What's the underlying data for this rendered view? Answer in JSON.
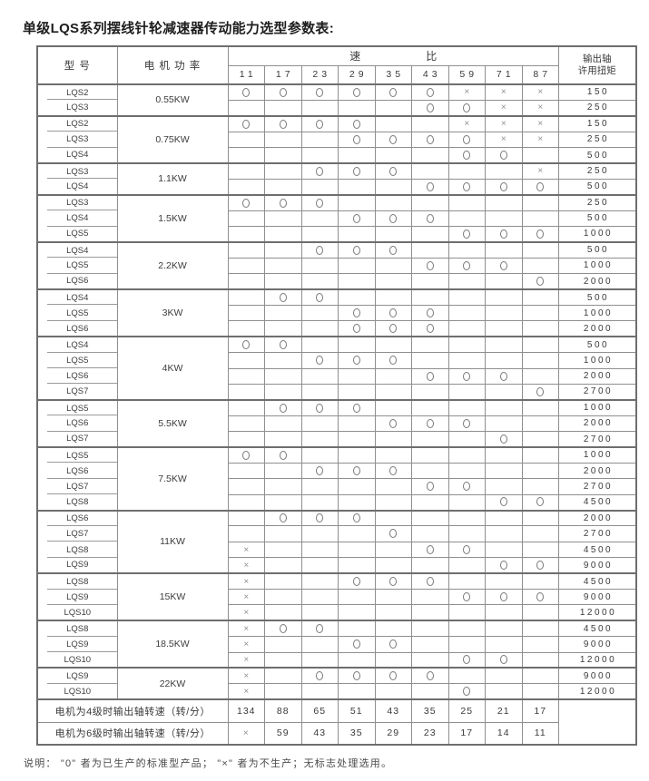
{
  "title": "单级LQS系列摆线针轮减速器传动能力选型参数表:",
  "colors": {
    "line_gray": "#8f8f8f",
    "border_dark": "#6e6e6e",
    "text_ink": "#3c3c3c"
  },
  "legend": {
    "circle_meaning": "已生产的标准型产品",
    "cross_meaning": "不生产"
  },
  "table": {
    "header": {
      "model": "型 号",
      "power": "电 机 功 率",
      "ratio_label": [
        "速",
        "比"
      ],
      "ratios": [
        "11",
        "17",
        "23",
        "29",
        "35",
        "43",
        "59",
        "71",
        "87"
      ],
      "torque_lines": [
        "输出轴",
        "许用扭矩"
      ]
    },
    "groups": [
      {
        "power": "0.55KW",
        "rows": [
          {
            "model": "LQS2",
            "cells": [
              "O",
              "O",
              "O",
              "O",
              "O",
              "O",
              "X",
              "X",
              "X"
            ],
            "torque": "150"
          },
          {
            "model": "LQS3",
            "cells": [
              "",
              "",
              "",
              "",
              "",
              "O",
              "O",
              "X",
              "X"
            ],
            "torque": "250"
          }
        ]
      },
      {
        "power": "0.75KW",
        "rows": [
          {
            "model": "LQS2",
            "cells": [
              "O",
              "O",
              "O",
              "O",
              "",
              "",
              "X",
              "X",
              "X"
            ],
            "torque": "150"
          },
          {
            "model": "LQS3",
            "cells": [
              "",
              "",
              "",
              "O",
              "O",
              "O",
              "O",
              "X",
              "X"
            ],
            "torque": "250"
          },
          {
            "model": "LQS4",
            "cells": [
              "",
              "",
              "",
              "",
              "",
              "",
              "O",
              "O",
              ""
            ],
            "torque": "500"
          }
        ]
      },
      {
        "power": "1.1KW",
        "rows": [
          {
            "model": "LQS3",
            "cells": [
              "",
              "",
              "O",
              "O",
              "O",
              "",
              "",
              "",
              "X"
            ],
            "torque": "250"
          },
          {
            "model": "LQS4",
            "cells": [
              "",
              "",
              "",
              "",
              "",
              "O",
              "O",
              "O",
              "O"
            ],
            "torque": "500"
          }
        ]
      },
      {
        "power": "1.5KW",
        "rows": [
          {
            "model": "LQS3",
            "cells": [
              "O",
              "O",
              "O",
              "",
              "",
              "",
              "",
              "",
              ""
            ],
            "torque": "250"
          },
          {
            "model": "LQS4",
            "cells": [
              "",
              "",
              "",
              "O",
              "O",
              "O",
              "",
              "",
              ""
            ],
            "torque": "500"
          },
          {
            "model": "LQS5",
            "cells": [
              "",
              "",
              "",
              "",
              "",
              "",
              "O",
              "O",
              "O"
            ],
            "torque": "1000"
          }
        ]
      },
      {
        "power": "2.2KW",
        "rows": [
          {
            "model": "LQS4",
            "cells": [
              "",
              "",
              "O",
              "O",
              "O",
              "",
              "",
              "",
              ""
            ],
            "torque": "500"
          },
          {
            "model": "LQS5",
            "cells": [
              "",
              "",
              "",
              "",
              "",
              "O",
              "O",
              "O",
              ""
            ],
            "torque": "1000"
          },
          {
            "model": "LQS6",
            "cells": [
              "",
              "",
              "",
              "",
              "",
              "",
              "",
              "",
              "O"
            ],
            "torque": "2000"
          }
        ]
      },
      {
        "power": "3KW",
        "rows": [
          {
            "model": "LQS4",
            "cells": [
              "",
              "O",
              "O",
              "",
              "",
              "",
              "",
              "",
              ""
            ],
            "torque": "500"
          },
          {
            "model": "LQS5",
            "cells": [
              "",
              "",
              "",
              "O",
              "O",
              "O",
              "",
              "",
              ""
            ],
            "torque": "1000"
          },
          {
            "model": "LQS6",
            "cells": [
              "",
              "",
              "",
              "O",
              "O",
              "O",
              "",
              "",
              ""
            ],
            "torque": "2000"
          }
        ]
      },
      {
        "power": "4KW",
        "rows": [
          {
            "model": "LQS4",
            "cells": [
              "O",
              "O",
              "",
              "",
              "",
              "",
              "",
              "",
              ""
            ],
            "torque": "500"
          },
          {
            "model": "LQS5",
            "cells": [
              "",
              "",
              "O",
              "O",
              "O",
              "",
              "",
              "",
              ""
            ],
            "torque": "1000"
          },
          {
            "model": "LQS6",
            "cells": [
              "",
              "",
              "",
              "",
              "",
              "O",
              "O",
              "O",
              ""
            ],
            "torque": "2000"
          },
          {
            "model": "LQS7",
            "cells": [
              "",
              "",
              "",
              "",
              "",
              "",
              "",
              "",
              "O"
            ],
            "torque": "2700"
          }
        ]
      },
      {
        "power": "5.5KW",
        "rows": [
          {
            "model": "LQS5",
            "cells": [
              "",
              "O",
              "O",
              "O",
              "",
              "",
              "",
              "",
              ""
            ],
            "torque": "1000"
          },
          {
            "model": "LQS6",
            "cells": [
              "",
              "",
              "",
              "",
              "O",
              "O",
              "O",
              "",
              ""
            ],
            "torque": "2000"
          },
          {
            "model": "LQS7",
            "cells": [
              "",
              "",
              "",
              "",
              "",
              "",
              "",
              "O",
              ""
            ],
            "torque": "2700"
          }
        ]
      },
      {
        "power": "7.5KW",
        "rows": [
          {
            "model": "LQS5",
            "cells": [
              "O",
              "O",
              "",
              "",
              "",
              "",
              "",
              "",
              ""
            ],
            "torque": "1000"
          },
          {
            "model": "LQS6",
            "cells": [
              "",
              "",
              "O",
              "O",
              "O",
              "",
              "",
              "",
              ""
            ],
            "torque": "2000"
          },
          {
            "model": "LQS7",
            "cells": [
              "",
              "",
              "",
              "",
              "",
              "O",
              "O",
              "",
              ""
            ],
            "torque": "2700"
          },
          {
            "model": "LQS8",
            "cells": [
              "",
              "",
              "",
              "",
              "",
              "",
              "",
              "O",
              "O"
            ],
            "torque": "4500"
          }
        ]
      },
      {
        "power": "11KW",
        "rows": [
          {
            "model": "LQS6",
            "cells": [
              "",
              "O",
              "O",
              "O",
              "",
              "",
              "",
              "",
              ""
            ],
            "torque": "2000"
          },
          {
            "model": "LQS7",
            "cells": [
              "",
              "",
              "",
              "",
              "O",
              "",
              "",
              "",
              ""
            ],
            "torque": "2700"
          },
          {
            "model": "LQS8",
            "cells": [
              "X",
              "",
              "",
              "",
              "",
              "O",
              "O",
              "",
              ""
            ],
            "torque": "4500"
          },
          {
            "model": "LQS9",
            "cells": [
              "X",
              "",
              "",
              "",
              "",
              "",
              "",
              "O",
              "O"
            ],
            "torque": "9000"
          }
        ]
      },
      {
        "power": "15KW",
        "rows": [
          {
            "model": "LQS8",
            "cells": [
              "X",
              "",
              "",
              "O",
              "O",
              "O",
              "",
              "",
              ""
            ],
            "torque": "4500"
          },
          {
            "model": "LQS9",
            "cells": [
              "X",
              "",
              "",
              "",
              "",
              "",
              "O",
              "O",
              "O"
            ],
            "torque": "9000"
          },
          {
            "model": "LQS10",
            "cells": [
              "X",
              "",
              "",
              "",
              "",
              "",
              "",
              "",
              ""
            ],
            "torque": "12000"
          }
        ]
      },
      {
        "power": "18.5KW",
        "rows": [
          {
            "model": "LQS8",
            "cells": [
              "X",
              "O",
              "O",
              "",
              "",
              "",
              "",
              "",
              ""
            ],
            "torque": "4500"
          },
          {
            "model": "LQS9",
            "cells": [
              "X",
              "",
              "",
              "O",
              "O",
              "",
              "",
              "",
              ""
            ],
            "torque": "9000"
          },
          {
            "model": "LQS10",
            "cells": [
              "X",
              "",
              "",
              "",
              "",
              "",
              "O",
              "O",
              ""
            ],
            "torque": "12000"
          }
        ]
      },
      {
        "power": "22KW",
        "rows": [
          {
            "model": "LQS9",
            "cells": [
              "X",
              "",
              "O",
              "O",
              "O",
              "O",
              "",
              "",
              ""
            ],
            "torque": "9000"
          },
          {
            "model": "LQS10",
            "cells": [
              "X",
              "",
              "",
              "",
              "",
              "",
              "O",
              "",
              ""
            ],
            "torque": "12000"
          }
        ]
      }
    ],
    "speed_rows": [
      {
        "label": "电机为4级时输出轴转速（转/分）",
        "values": [
          "134",
          "88",
          "65",
          "51",
          "43",
          "35",
          "25",
          "21",
          "17"
        ]
      },
      {
        "label": "电机为6级时输出轴转速（转/分）",
        "values": [
          "X",
          "59",
          "43",
          "35",
          "29",
          "23",
          "17",
          "14",
          "11"
        ]
      }
    ]
  },
  "footnote": "说明： \"0\" 者为已生产的标准型产品； \"×\" 者为不生产；无标志处理选用。"
}
